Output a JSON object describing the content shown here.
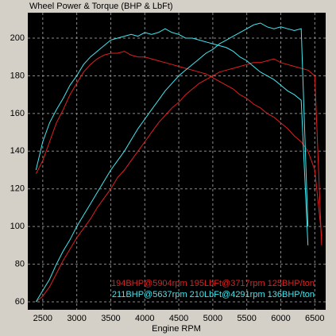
{
  "chart_data": {
    "type": "line",
    "title": "Wheel Power & Torque (BHP & LbFt)",
    "xlabel": "Engine RPM",
    "x": [
      2400,
      2500,
      2600,
      2700,
      2800,
      2900,
      3000,
      3100,
      3200,
      3300,
      3400,
      3500,
      3600,
      3700,
      3800,
      3900,
      4000,
      4100,
      4200,
      4300,
      4400,
      4500,
      4600,
      4700,
      4800,
      4900,
      5000,
      5100,
      5200,
      5300,
      5400,
      5500,
      5600,
      5700,
      5800,
      5900,
      6000,
      6100,
      6200,
      6300,
      6400,
      6500,
      6600
    ],
    "series": [
      {
        "color": "#e02020",
        "values": [
          128,
          135,
          145,
          155,
          162,
          170,
          176,
          182,
          186,
          189,
          191,
          192,
          192,
          193,
          191,
          190,
          190,
          189,
          188,
          187,
          186,
          185,
          184,
          183,
          182,
          181,
          179,
          177,
          175,
          173,
          170,
          168,
          165,
          163,
          160,
          158,
          155,
          152,
          148,
          145,
          140,
          130,
          95
        ]
      },
      {
        "color": "#e02020",
        "values": [
          60,
          63,
          68,
          75,
          82,
          88,
          94,
          99,
          104,
          110,
          115,
          120,
          126,
          130,
          135,
          140,
          145,
          150,
          155,
          159,
          163,
          166,
          170,
          173,
          176,
          178,
          180,
          182,
          183,
          184,
          185,
          186,
          187,
          187,
          188,
          189,
          187,
          186,
          185,
          184,
          183,
          180,
          90
        ]
      },
      {
        "color": "#40e8f0",
        "values": [
          130,
          145,
          155,
          162,
          168,
          175,
          180,
          186,
          190,
          193,
          196,
          199,
          200,
          201,
          202,
          201,
          203,
          202,
          203,
          205,
          203,
          202,
          200,
          200,
          199,
          198,
          197,
          196,
          195,
          193,
          190,
          188,
          185,
          182,
          180,
          178,
          175,
          172,
          170,
          167,
          90,
          null,
          null
        ]
      },
      {
        "color": "#40e8f0",
        "values": [
          60,
          66,
          72,
          80,
          87,
          93,
          100,
          106,
          112,
          118,
          124,
          130,
          135,
          140,
          146,
          152,
          157,
          162,
          167,
          172,
          176,
          180,
          183,
          186,
          189,
          192,
          194,
          197,
          199,
          201,
          203,
          205,
          207,
          208,
          206,
          205,
          206,
          205,
          204,
          205,
          100,
          null,
          null
        ]
      }
    ],
    "annotations": [
      {
        "text": "194BHP@5904rpm 195LbFt@3717rpm 125BHP/ton",
        "color": "#e02020"
      },
      {
        "text": "211BHP@5637rpm 210LbFt@4291rpm 136BHP/ton",
        "color": "#40e8f0"
      }
    ],
    "xlim": [
      2280,
      6660
    ],
    "ylim": [
      55.8,
      213.5
    ],
    "xticks": [
      2500,
      3000,
      3500,
      4000,
      4500,
      5000,
      5500,
      6000,
      6500
    ],
    "yticks": [
      60,
      80,
      100,
      120,
      140,
      160,
      180,
      200
    ],
    "grid": true
  }
}
